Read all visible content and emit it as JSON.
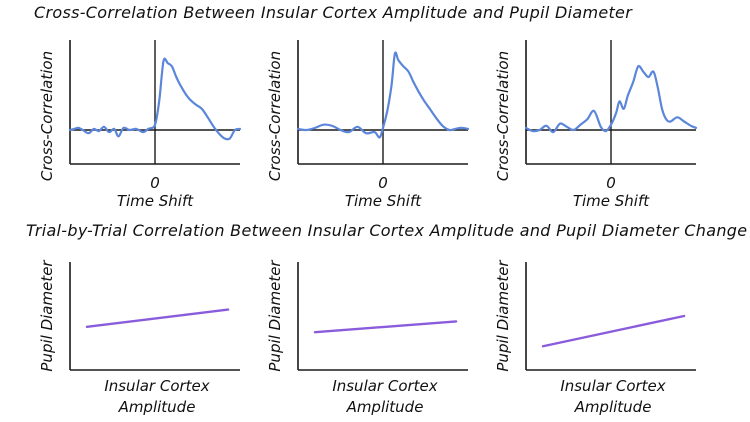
{
  "titles": {
    "top": "Cross-Correlation Between Insular Cortex Amplitude and Pupil Diameter",
    "bottom": "Trial-by-Trial Correlation Between Insular Cortex Amplitude and Pupil Diameter Change"
  },
  "colors": {
    "cross_line": "#5b86d9",
    "trial_line": "#8a5cdc",
    "axis": "#1a1a1a"
  },
  "chart_data": [
    {
      "type": "line",
      "group": "cross-correlation",
      "panel": 1,
      "xlabel_tick": "0",
      "xlabel": "Time Shift",
      "ylabel": "Cross-Correlation",
      "xlim": [
        -1,
        1
      ],
      "ylim": [
        -0.2,
        1
      ],
      "series": [
        {
          "x": [
            -1,
            -0.95,
            -0.9,
            -0.85,
            -0.78,
            -0.72,
            -0.66,
            -0.6,
            -0.54,
            -0.48,
            -0.43,
            -0.37,
            -0.3,
            -0.22,
            -0.14,
            -0.08,
            0,
            0.05,
            0.1,
            0.15,
            0.2,
            0.25,
            0.3,
            0.36,
            0.42,
            0.48,
            0.55,
            0.62,
            0.7,
            0.76,
            0.82,
            0.88,
            0.94,
            1
          ],
          "y": [
            0.0,
            0.01,
            0.02,
            0.0,
            -0.03,
            0.01,
            -0.01,
            0.03,
            -0.02,
            0.01,
            -0.06,
            0.02,
            0.0,
            0.01,
            -0.02,
            0.01,
            0.05,
            0.28,
            0.65,
            0.63,
            0.6,
            0.5,
            0.42,
            0.34,
            0.28,
            0.24,
            0.2,
            0.12,
            0.02,
            -0.04,
            -0.08,
            -0.08,
            0.0,
            0.01
          ]
        }
      ]
    },
    {
      "type": "line",
      "group": "cross-correlation",
      "panel": 2,
      "xlabel_tick": "0",
      "xlabel": "Time Shift",
      "ylabel": "Cross-Correlation",
      "xlim": [
        -1,
        1
      ],
      "ylim": [
        -0.2,
        1
      ],
      "series": [
        {
          "x": [
            -1,
            -0.9,
            -0.8,
            -0.7,
            -0.6,
            -0.5,
            -0.4,
            -0.3,
            -0.2,
            -0.1,
            -0.04,
            0,
            0.05,
            0.1,
            0.14,
            0.18,
            0.24,
            0.3,
            0.36,
            0.42,
            0.48,
            0.55,
            0.62,
            0.7,
            0.78,
            0.85,
            0.92,
            1
          ],
          "y": [
            0.01,
            0.0,
            0.02,
            0.05,
            0.04,
            0.0,
            -0.02,
            0.03,
            -0.03,
            -0.02,
            -0.07,
            0.02,
            0.18,
            0.42,
            0.72,
            0.66,
            0.6,
            0.55,
            0.45,
            0.36,
            0.28,
            0.2,
            0.12,
            0.04,
            0.0,
            0.01,
            0.02,
            0.01
          ]
        }
      ]
    },
    {
      "type": "line",
      "group": "cross-correlation",
      "panel": 3,
      "xlabel_tick": "0",
      "xlabel": "Time Shift",
      "ylabel": "Cross-Correlation",
      "xlim": [
        -1,
        1
      ],
      "ylim": [
        -0.2,
        1
      ],
      "series": [
        {
          "x": [
            -1,
            -0.92,
            -0.84,
            -0.76,
            -0.68,
            -0.6,
            -0.52,
            -0.44,
            -0.36,
            -0.28,
            -0.2,
            -0.12,
            -0.06,
            0,
            0.06,
            0.1,
            0.15,
            0.2,
            0.26,
            0.32,
            0.38,
            0.44,
            0.5,
            0.55,
            0.6,
            0.65,
            0.7,
            0.78,
            0.86,
            0.94,
            1
          ],
          "y": [
            0.02,
            -0.01,
            0.0,
            0.04,
            -0.02,
            0.06,
            0.03,
            0.0,
            0.05,
            0.1,
            0.18,
            0.03,
            -0.01,
            0.05,
            0.16,
            0.27,
            0.2,
            0.33,
            0.45,
            0.6,
            0.55,
            0.5,
            0.55,
            0.4,
            0.2,
            0.1,
            0.08,
            0.12,
            0.08,
            0.04,
            0.02
          ]
        }
      ]
    },
    {
      "type": "line",
      "group": "trial-correlation",
      "panel": 1,
      "xlabel": "Insular Cortex Amplitude",
      "ylabel": "Pupil Diameter",
      "xlim": [
        0,
        1
      ],
      "ylim": [
        0,
        1
      ],
      "series": [
        {
          "x": [
            0.1,
            0.93
          ],
          "y": [
            0.4,
            0.56
          ]
        }
      ]
    },
    {
      "type": "line",
      "group": "trial-correlation",
      "panel": 2,
      "xlabel": "Insular Cortex Amplitude",
      "ylabel": "Pupil Diameter",
      "xlim": [
        0,
        1
      ],
      "ylim": [
        0,
        1
      ],
      "series": [
        {
          "x": [
            0.1,
            0.93
          ],
          "y": [
            0.35,
            0.45
          ]
        }
      ]
    },
    {
      "type": "line",
      "group": "trial-correlation",
      "panel": 3,
      "xlabel": "Insular Cortex Amplitude",
      "ylabel": "Pupil Diameter",
      "xlim": [
        0,
        1
      ],
      "ylim": [
        0,
        1
      ],
      "series": [
        {
          "x": [
            0.1,
            0.93
          ],
          "y": [
            0.22,
            0.5
          ]
        }
      ]
    }
  ]
}
